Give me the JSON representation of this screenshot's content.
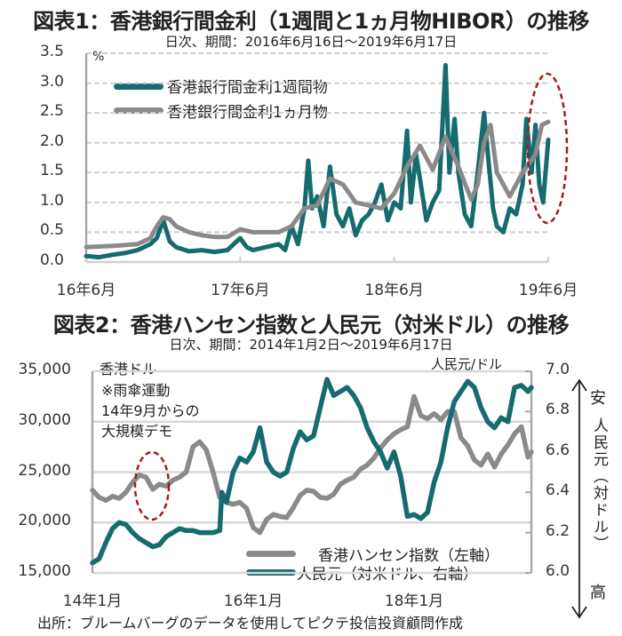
{
  "chart_data": [
    {
      "type": "line",
      "title": "図表1：香港銀行間金利（1週間と1ヵ月物HIBOR）の推移",
      "subtitle": "日次、期間：2016年6月16日～2019年6月17日",
      "ylabel": "%",
      "ylim": [
        0,
        3.5
      ],
      "yticks": [
        "0.0",
        "0.5",
        "1.0",
        "1.5",
        "2.0",
        "2.5",
        "3.0",
        "3.5"
      ],
      "xlim": [
        0,
        36
      ],
      "xunit": "months since 2016-06",
      "xticks": [
        {
          "x": 0,
          "label": "16年6月"
        },
        {
          "x": 12,
          "label": "17年6月"
        },
        {
          "x": 24,
          "label": "18年6月"
        },
        {
          "x": 36,
          "label": "19年6月"
        }
      ],
      "grid": true,
      "legend_placement": "top-left",
      "annotation": "red dashed ellipse highlighting June 2019",
      "series": [
        {
          "name": "香港銀行間金利1週間物",
          "color": "#156b6e",
          "x": [
            0,
            1,
            2,
            3,
            4,
            5,
            5.5,
            6,
            6.5,
            7,
            8,
            9,
            10,
            11,
            12,
            12.5,
            13,
            14,
            15,
            15.5,
            16,
            16.5,
            17,
            17.3,
            17.6,
            18,
            18.5,
            19,
            19.5,
            20,
            20.5,
            21,
            21.5,
            22,
            22.5,
            23,
            23.5,
            24,
            24.5,
            25,
            25.3,
            25.7,
            26,
            26.5,
            27,
            27.5,
            28,
            28.3,
            28.7,
            29,
            29.5,
            30,
            30.5,
            31,
            31.3,
            31.7,
            32,
            32.5,
            33,
            33.5,
            34,
            34.3,
            34.7,
            35,
            35.3,
            35.6,
            36
          ],
          "y": [
            0.1,
            0.08,
            0.12,
            0.15,
            0.2,
            0.3,
            0.4,
            0.7,
            0.35,
            0.25,
            0.18,
            0.2,
            0.17,
            0.2,
            0.4,
            0.25,
            0.2,
            0.25,
            0.3,
            0.2,
            0.6,
            0.3,
            0.9,
            1.7,
            0.9,
            1.1,
            0.6,
            1.6,
            0.8,
            0.6,
            0.9,
            0.45,
            0.7,
            0.8,
            1.0,
            1.3,
            0.7,
            1.0,
            0.9,
            2.2,
            1.0,
            1.8,
            1.4,
            0.7,
            1.0,
            1.2,
            3.3,
            1.5,
            2.4,
            1.5,
            0.8,
            0.6,
            1.5,
            2.5,
            1.8,
            0.9,
            0.6,
            0.5,
            0.9,
            0.8,
            1.3,
            2.4,
            1.5,
            2.3,
            1.3,
            1.0,
            2.05
          ]
        },
        {
          "name": "香港銀行間金利1ヵ月物",
          "color": "#8a8a8a",
          "x": [
            0,
            2,
            4,
            5,
            5.5,
            6,
            6.5,
            7,
            8,
            9,
            10,
            11,
            12,
            13,
            14,
            15,
            16,
            17,
            18,
            19,
            20,
            21,
            22,
            23,
            24,
            25,
            26,
            26.5,
            27,
            28,
            29,
            30,
            30.5,
            31,
            31.5,
            32,
            33,
            34,
            35,
            35.5,
            36
          ],
          "y": [
            0.25,
            0.27,
            0.3,
            0.4,
            0.6,
            0.75,
            0.72,
            0.6,
            0.5,
            0.45,
            0.42,
            0.42,
            0.55,
            0.5,
            0.5,
            0.5,
            0.6,
            0.9,
            0.95,
            1.4,
            1.3,
            1.0,
            0.95,
            0.9,
            1.15,
            1.6,
            1.95,
            1.75,
            1.55,
            2.1,
            1.6,
            1.05,
            1.3,
            2.0,
            2.3,
            1.5,
            1.1,
            1.5,
            1.8,
            2.3,
            2.35
          ]
        }
      ]
    },
    {
      "type": "line",
      "title": "図表2：香港ハンセン指数と人民元（対米ドル）の推移",
      "subtitle": "日次、期間：2014年1月2日～2019年6月17日",
      "ylabel_left": "香港ドル",
      "ylabel_right": "人民元/ドル",
      "ylim_left": [
        15000,
        35000
      ],
      "yticks_left": [
        "15,000",
        "20,000",
        "25,000",
        "30,000",
        "35,000"
      ],
      "ylim_right": [
        6.0,
        7.0
      ],
      "yticks_right": [
        "6.0",
        "6.2",
        "6.4",
        "6.6",
        "6.8",
        "7.0"
      ],
      "xlim": [
        0,
        65.5
      ],
      "xunit": "months since 2014-01",
      "xticks": [
        {
          "x": 0,
          "label": "14年1月"
        },
        {
          "x": 24,
          "label": "16年1月"
        },
        {
          "x": 48,
          "label": "18年1月"
        }
      ],
      "grid": true,
      "legend_placement": "bottom-right",
      "annotation": "※雨傘運動 14年9月からの 大規模デモ",
      "right_axis_arrow": {
        "top": "安",
        "middle": "人民元（対ドル）",
        "bottom": "高"
      },
      "series": [
        {
          "name": "香港ハンセン指数（左軸）",
          "axis": "left",
          "color": "#8a8a8a",
          "x": [
            0,
            1,
            2,
            3,
            4,
            5,
            6,
            7,
            8,
            9,
            10,
            11,
            12,
            13,
            14,
            15,
            16,
            17,
            18,
            19,
            20,
            21,
            22,
            23,
            24,
            25,
            26,
            27,
            28,
            29,
            30,
            31,
            32,
            33,
            34,
            35,
            36,
            37,
            38,
            39,
            40,
            41,
            42,
            43,
            44,
            45,
            46,
            47,
            48,
            49,
            50,
            51,
            52,
            53,
            54,
            55,
            56,
            57,
            58,
            59,
            60,
            61,
            62,
            63,
            64,
            65,
            65.5
          ],
          "y": [
            23200,
            22500,
            22200,
            22600,
            22400,
            23000,
            24000,
            24700,
            24500,
            23300,
            23800,
            23600,
            24200,
            24500,
            25000,
            27500,
            28000,
            27200,
            25000,
            22500,
            22000,
            21800,
            22000,
            21400,
            19500,
            19000,
            20300,
            20800,
            20600,
            20500,
            21500,
            22700,
            23200,
            23100,
            22500,
            22400,
            22800,
            23800,
            24200,
            24500,
            25300,
            25700,
            26400,
            27400,
            28200,
            28800,
            29200,
            29500,
            32500,
            30600,
            30300,
            30800,
            30200,
            31000,
            31000,
            28400,
            27600,
            26200,
            25700,
            26800,
            25500,
            26800,
            27700,
            28800,
            29500,
            26500,
            27000
          ]
        },
        {
          "name": "人民元（対米ドル、右軸）",
          "axis": "right",
          "color": "#156b6e",
          "x": [
            0,
            1,
            2,
            3,
            4,
            5,
            6,
            7,
            8,
            9,
            10,
            11,
            12,
            13,
            14,
            15,
            16,
            17,
            18,
            19,
            19.3,
            19.6,
            20,
            21,
            22,
            23,
            24,
            25,
            26,
            27,
            28,
            29,
            30,
            31,
            32,
            33,
            34,
            35,
            36,
            37,
            38,
            39,
            40,
            41,
            42,
            43,
            44,
            45,
            46,
            47,
            48,
            49,
            50,
            51,
            52,
            53,
            54,
            55,
            56,
            57,
            58,
            59,
            60,
            61,
            62,
            63,
            64,
            65,
            65.5
          ],
          "y": [
            6.05,
            6.07,
            6.15,
            6.22,
            6.25,
            6.24,
            6.2,
            6.17,
            6.15,
            6.13,
            6.14,
            6.18,
            6.2,
            6.22,
            6.21,
            6.21,
            6.2,
            6.2,
            6.2,
            6.21,
            6.4,
            6.38,
            6.35,
            6.5,
            6.57,
            6.55,
            6.6,
            6.72,
            6.55,
            6.5,
            6.48,
            6.5,
            6.62,
            6.7,
            6.66,
            6.68,
            6.82,
            6.96,
            6.88,
            6.9,
            6.92,
            6.88,
            6.82,
            6.72,
            6.65,
            6.6,
            6.52,
            6.6,
            6.48,
            6.28,
            6.29,
            6.27,
            6.3,
            6.45,
            6.55,
            6.72,
            6.85,
            6.9,
            6.95,
            6.92,
            6.82,
            6.75,
            6.72,
            6.77,
            6.75,
            6.92,
            6.93,
            6.9,
            6.92
          ]
        }
      ]
    }
  ],
  "texts": {
    "chart1_title": "図表1：香港銀行間金利（1週間と1ヵ月物HIBOR）の推移",
    "chart1_subtitle": "日次、期間：2016年6月16日～2019年6月17日",
    "chart1_unit": "%",
    "chart1_legend_1w": "香港銀行間金利1週間物",
    "chart1_legend_1m": "香港銀行間金利1ヵ月物",
    "chart2_title": "図表2：香港ハンセン指数と人民元（対米ドル）の推移",
    "chart2_subtitle": "日次、期間：2014年1月2日～2019年6月17日",
    "chart2_left_unit": "香港ドル",
    "chart2_right_unit": "人民元/ドル",
    "chart2_note_1": "※雨傘運動",
    "chart2_note_2": "14年9月からの",
    "chart2_note_3": "大規模デモ",
    "chart2_legend_hsi": "香港ハンセン指数（左軸）",
    "chart2_legend_cny": "人民元（対米ドル、右軸）",
    "arrow_top": "安",
    "arrow_middle": "人民元（対ドル）",
    "arrow_bottom": "高",
    "source": "出所：ブルームバーグのデータを使用してピクテ投信投資顧問作成"
  },
  "colors": {
    "teal": "#156b6e",
    "gray": "#8a8a8a",
    "highlight": "#a31b1b",
    "grid": "#cfcfcf",
    "axis": "#a8a8a8"
  }
}
